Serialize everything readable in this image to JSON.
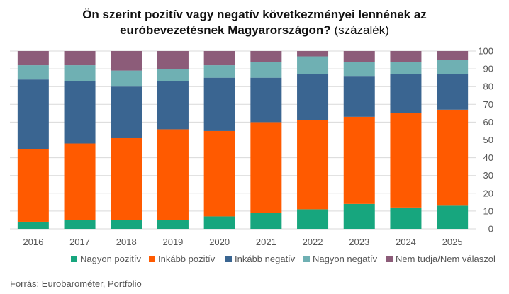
{
  "title": {
    "bold_line1": "Ön szerint pozitív vagy negatív következményei lennének az",
    "bold_line2": "euróbevezetésnek Magyarországon?",
    "unit": "(százalék)"
  },
  "source": "Forrás: Eurobarométer, Portfolio",
  "chart_data": {
    "type": "bar",
    "stacked": true,
    "categories": [
      "2016",
      "2017",
      "2018",
      "2019",
      "2020",
      "2021",
      "2022",
      "2023",
      "2024",
      "2025"
    ],
    "ylim": [
      0,
      100
    ],
    "yticks": [
      0,
      10,
      20,
      30,
      40,
      50,
      60,
      70,
      80,
      90,
      100
    ],
    "grid": true,
    "legend_position": "bottom",
    "series": [
      {
        "name": "Nagyon pozitív",
        "color": "#17a67e",
        "values": [
          4,
          5,
          5,
          5,
          7,
          9,
          11,
          14,
          12,
          13
        ]
      },
      {
        "name": "Inkább pozitív",
        "color": "#ff5a00",
        "values": [
          41,
          43,
          46,
          51,
          48,
          51,
          50,
          49,
          53,
          54
        ]
      },
      {
        "name": "Inkább negatív",
        "color": "#3a6591",
        "values": [
          39,
          35,
          29,
          27,
          30,
          25,
          26,
          23,
          22,
          20
        ]
      },
      {
        "name": "Nagyon negatív",
        "color": "#6fb0b3",
        "values": [
          8,
          9,
          9,
          7,
          7,
          9,
          10,
          8,
          7,
          8
        ]
      },
      {
        "name": "Nem tudja/Nem válaszol",
        "color": "#8c5c79",
        "values": [
          8,
          8,
          11,
          10,
          8,
          6,
          3,
          6,
          6,
          5
        ]
      }
    ]
  }
}
